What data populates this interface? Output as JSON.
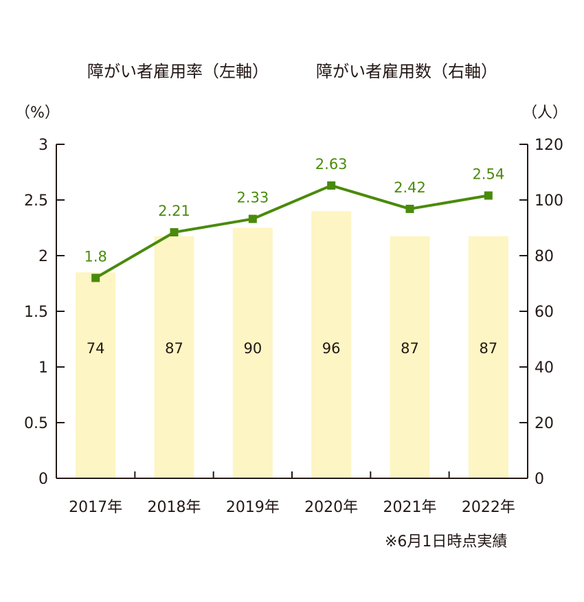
{
  "chart_data": {
    "type": "bar",
    "categories": [
      "2017年",
      "2018年",
      "2019年",
      "2020年",
      "2021年",
      "2022年"
    ],
    "series": [
      {
        "name": "障がい者雇用率（左軸）",
        "type": "line",
        "axis": "left",
        "values": [
          1.8,
          2.21,
          2.33,
          2.63,
          2.42,
          2.54
        ],
        "labels": [
          "1.8",
          "2.21",
          "2.33",
          "2.63",
          "2.42",
          "2.54"
        ]
      },
      {
        "name": "障がい者雇用数（右軸）",
        "type": "bar",
        "axis": "right",
        "values": [
          74,
          87,
          90,
          96,
          87,
          87
        ],
        "labels": [
          "74",
          "87",
          "90",
          "96",
          "87",
          "87"
        ]
      }
    ],
    "y_left": {
      "unit": "（%）",
      "range": [
        0,
        3
      ],
      "ticks": [
        "0",
        "0.5",
        "1",
        "1.5",
        "2",
        "2.5",
        "3"
      ],
      "tick_values": [
        0,
        0.5,
        1,
        1.5,
        2,
        2.5,
        3
      ]
    },
    "y_right": {
      "unit": "（人）",
      "range": [
        0,
        120
      ],
      "ticks": [
        "0",
        "20",
        "40",
        "60",
        "80",
        "100",
        "120"
      ],
      "tick_values": [
        0,
        20,
        40,
        60,
        80,
        100,
        120
      ]
    },
    "legend_placement": "top",
    "grid": false,
    "note": "※6月1日時点実績"
  },
  "colors": {
    "line": "#4a8a0c",
    "bar": "#fdf5c3",
    "axis": "#231815"
  }
}
